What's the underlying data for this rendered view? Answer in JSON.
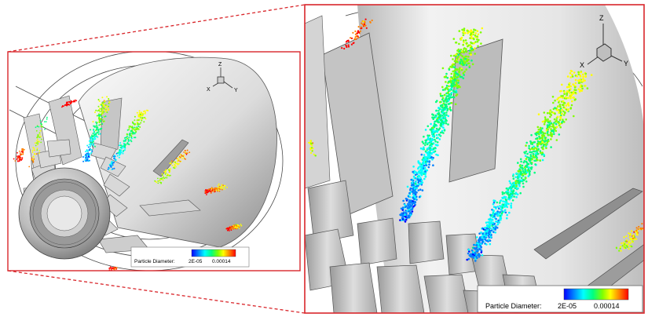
{
  "left_panel": {
    "axes": {
      "z": "Z",
      "x": "X",
      "y": "Y"
    },
    "legend": {
      "label": "Particle Diameter:",
      "min": "2E-05",
      "max": "0.00014"
    }
  },
  "right_panel": {
    "axes": {
      "z": "Z",
      "x": "X",
      "y": "Y"
    },
    "legend": {
      "label": "Particle Diameter:",
      "min": "2E-05",
      "max": "0.00014"
    }
  },
  "colors": {
    "frame": "#d9262b",
    "colormap": [
      "#0000ff",
      "#0080ff",
      "#00ffff",
      "#00ff80",
      "#80ff00",
      "#ffff00",
      "#ff8000",
      "#ff0000"
    ]
  }
}
